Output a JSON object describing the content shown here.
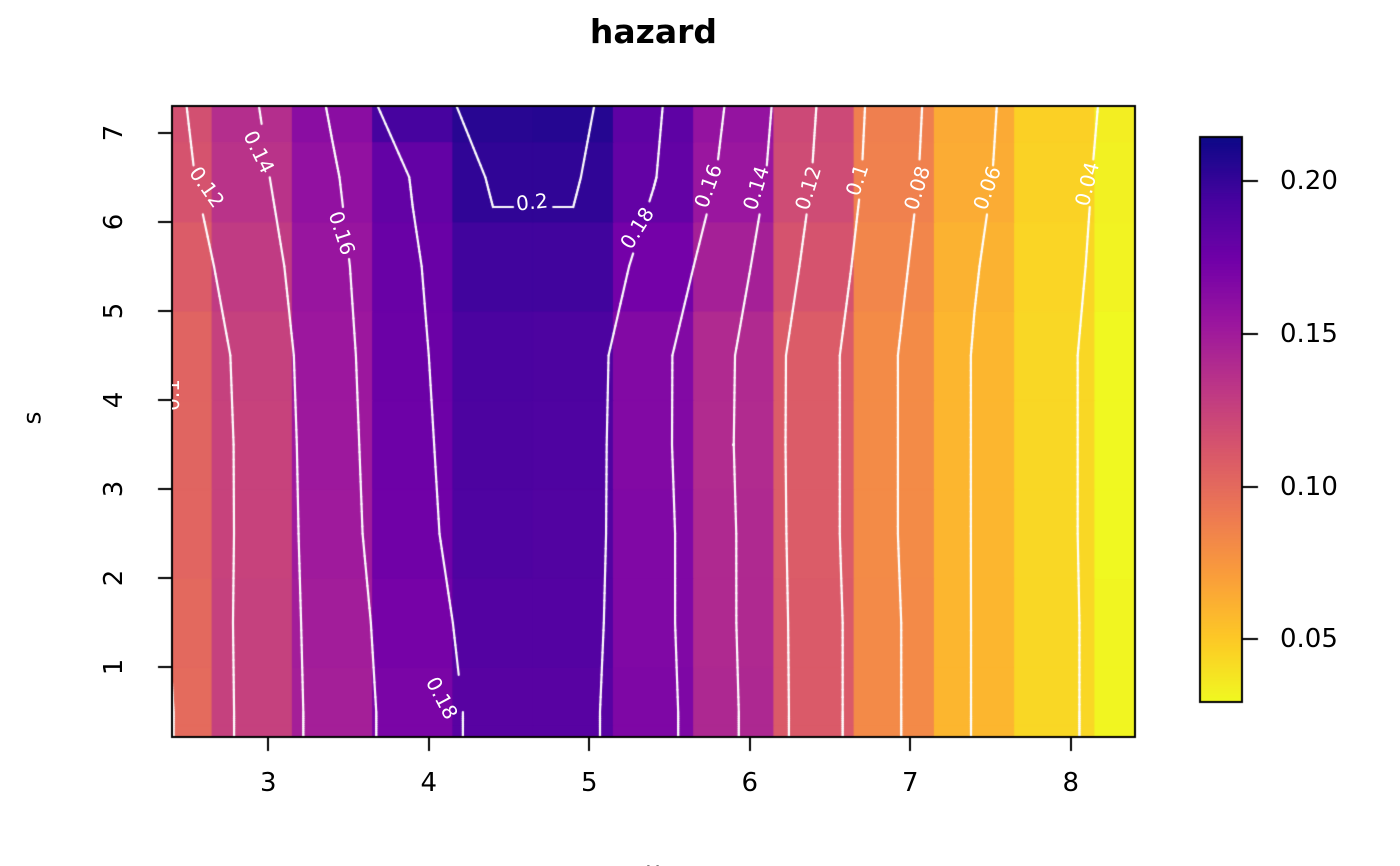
{
  "chart_data": {
    "type": "heatmap",
    "subtype": "filled-contour-image-plot",
    "title": "hazard",
    "xlabel": "u",
    "ylabel": "s",
    "x": [
      2.4,
      2.9,
      3.4,
      3.9,
      4.4,
      4.9,
      5.4,
      5.9,
      6.4,
      6.9,
      7.4,
      7.9,
      8.4
    ],
    "y": [
      0.5,
      1.5,
      2.5,
      3.5,
      4.5,
      5.5,
      6.5,
      7.3
    ],
    "xlim": [
      2.4,
      8.4
    ],
    "ylim": [
      0.22,
      7.3
    ],
    "zlim": [
      0.0295,
      0.2145
    ],
    "values": [
      [
        0.0995,
        0.126,
        0.148,
        0.17,
        0.186,
        0.186,
        0.168,
        0.142,
        0.11,
        0.082,
        0.059,
        0.044,
        0.031
      ],
      [
        0.101,
        0.126,
        0.149,
        0.172,
        0.188,
        0.188,
        0.167,
        0.141,
        0.11,
        0.082,
        0.059,
        0.044,
        0.031
      ],
      [
        0.103,
        0.125,
        0.151,
        0.175,
        0.19,
        0.189,
        0.167,
        0.141,
        0.109,
        0.081,
        0.059,
        0.044,
        0.03
      ],
      [
        0.1035,
        0.125,
        0.152,
        0.176,
        0.191,
        0.19,
        0.166,
        0.14,
        0.109,
        0.081,
        0.059,
        0.044,
        0.03
      ],
      [
        0.104,
        0.126,
        0.153,
        0.177,
        0.192,
        0.191,
        0.166,
        0.1405,
        0.109,
        0.081,
        0.059,
        0.044,
        0.03
      ],
      [
        0.109,
        0.13,
        0.155,
        0.178,
        0.196,
        0.196,
        0.173,
        0.147,
        0.114,
        0.084,
        0.061,
        0.045,
        0.032
      ],
      [
        0.114,
        0.135,
        0.158,
        0.181,
        0.202,
        0.202,
        0.181,
        0.154,
        0.119,
        0.087,
        0.064,
        0.046,
        0.033
      ],
      [
        0.116,
        0.138,
        0.162,
        0.194,
        0.205,
        0.206,
        0.183,
        0.157,
        0.121,
        0.088,
        0.065,
        0.047,
        0.034
      ]
    ],
    "contour_levels": [
      0.04,
      0.06,
      0.08,
      0.1,
      0.12,
      0.14,
      0.16,
      0.18,
      0.2
    ],
    "contour_color": "#ffffff",
    "contour_labels": [
      {
        "text": "0.12",
        "u": 2.62,
        "s": 6.39,
        "rot": 55
      },
      {
        "text": "0.14",
        "u": 2.94,
        "s": 6.78,
        "rot": 64
      },
      {
        "text": "0.16",
        "u": 3.46,
        "s": 5.88,
        "rot": 72
      },
      {
        "text": "0.1",
        "u": 2.4,
        "s": 4.06,
        "rot": -90
      },
      {
        "text": "0.18",
        "u": 4.08,
        "s": 0.66,
        "rot": 62
      },
      {
        "text": "0.2",
        "u": 4.64,
        "s": 6.22,
        "rot": -6
      },
      {
        "text": "0.18",
        "u": 5.3,
        "s": 5.93,
        "rot": -58
      },
      {
        "text": "0.16",
        "u": 5.74,
        "s": 6.4,
        "rot": -70
      },
      {
        "text": "0.14",
        "u": 6.04,
        "s": 6.38,
        "rot": -73
      },
      {
        "text": "0.12",
        "u": 6.36,
        "s": 6.38,
        "rot": -73
      },
      {
        "text": "0.1",
        "u": 6.67,
        "s": 6.47,
        "rot": -72
      },
      {
        "text": "0.08",
        "u": 7.04,
        "s": 6.38,
        "rot": -73
      },
      {
        "text": "0.06",
        "u": 7.48,
        "s": 6.38,
        "rot": -70
      },
      {
        "text": "0.04",
        "u": 8.1,
        "s": 6.42,
        "rot": -76
      }
    ],
    "x_ticks": [
      3,
      4,
      5,
      6,
      7,
      8
    ],
    "y_ticks": [
      1,
      2,
      3,
      4,
      5,
      6,
      7
    ],
    "colorbar": {
      "tick_labels": [
        "0.05",
        "0.10",
        "0.15",
        "0.20"
      ],
      "tick_values": [
        0.05,
        0.1,
        0.15,
        0.2
      ]
    },
    "palette": {
      "name": "plasma-reversed",
      "colors": [
        "#0d0887",
        "#47039f",
        "#7301a8",
        "#9c179e",
        "#bd3786",
        "#d8576b",
        "#ed7953",
        "#fa9e3b",
        "#fdc926",
        "#f0f921"
      ]
    },
    "frame_color": "#000000"
  }
}
